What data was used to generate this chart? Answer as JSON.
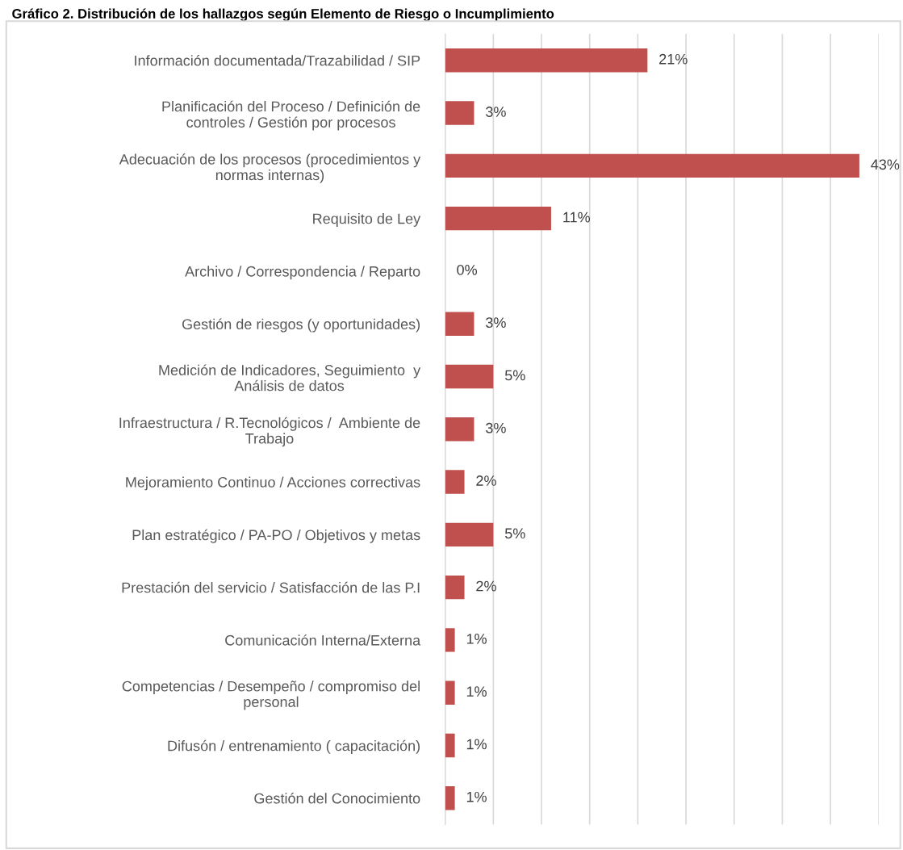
{
  "chart_data": {
    "type": "bar",
    "orientation": "horizontal",
    "title": "Gráfico 2. Distribución de los hallazgos según Elemento de Riesgo o Incumplimiento",
    "categories": [
      "Información documentada/Trazabilidad / SIP",
      "Planificación del Proceso / Definición de\ncontroles / Gestión por procesos",
      "Adecuación de los procesos (procedimientos y\nnormas internas)",
      "Requisito de Ley",
      "Archivo / Correspondencia / Reparto",
      "Gestión de riesgos (y oportunidades)",
      "Medición de Indicadores, Seguimiento  y\nAnálisis de datos",
      "Infraestructura / R.Tecnológicos /  Ambiente de\nTrabajo",
      "Mejoramiento Continuo / Acciones correctivas",
      "Plan estratégico / PA-PO / Objetivos y metas",
      "Prestación del servicio / Satisfacción de las P.I",
      "Comunicación Interna/Externa",
      "Competencias / Desempeño / compromiso del\npersonal",
      "Difusón / entrenamiento ( capacitación)",
      "Gestión del Conocimiento"
    ],
    "values": [
      21,
      3,
      43,
      11,
      0,
      3,
      5,
      3,
      2,
      5,
      2,
      1,
      1,
      1,
      1
    ],
    "value_labels": [
      "21%",
      "3%",
      "43%",
      "11%",
      "0%",
      "3%",
      "5%",
      "3%",
      "2%",
      "5%",
      "2%",
      "1%",
      "1%",
      "1%",
      "1%"
    ],
    "color": "#c0504d",
    "xlim": [
      0,
      45
    ],
    "xticks": [
      {
        "value": 0,
        "label": null
      },
      {
        "value": 5,
        "label": null
      },
      {
        "value": 10,
        "label": null
      },
      {
        "value": 15,
        "label": null
      },
      {
        "value": 20,
        "label": null
      },
      {
        "value": 25,
        "label": null
      },
      {
        "value": 30,
        "label": null
      },
      {
        "value": 35,
        "label": null
      },
      {
        "value": 40,
        "label": null
      },
      {
        "value": 45,
        "label": null
      }
    ],
    "grid": "x",
    "tick_labels": "y"
  }
}
